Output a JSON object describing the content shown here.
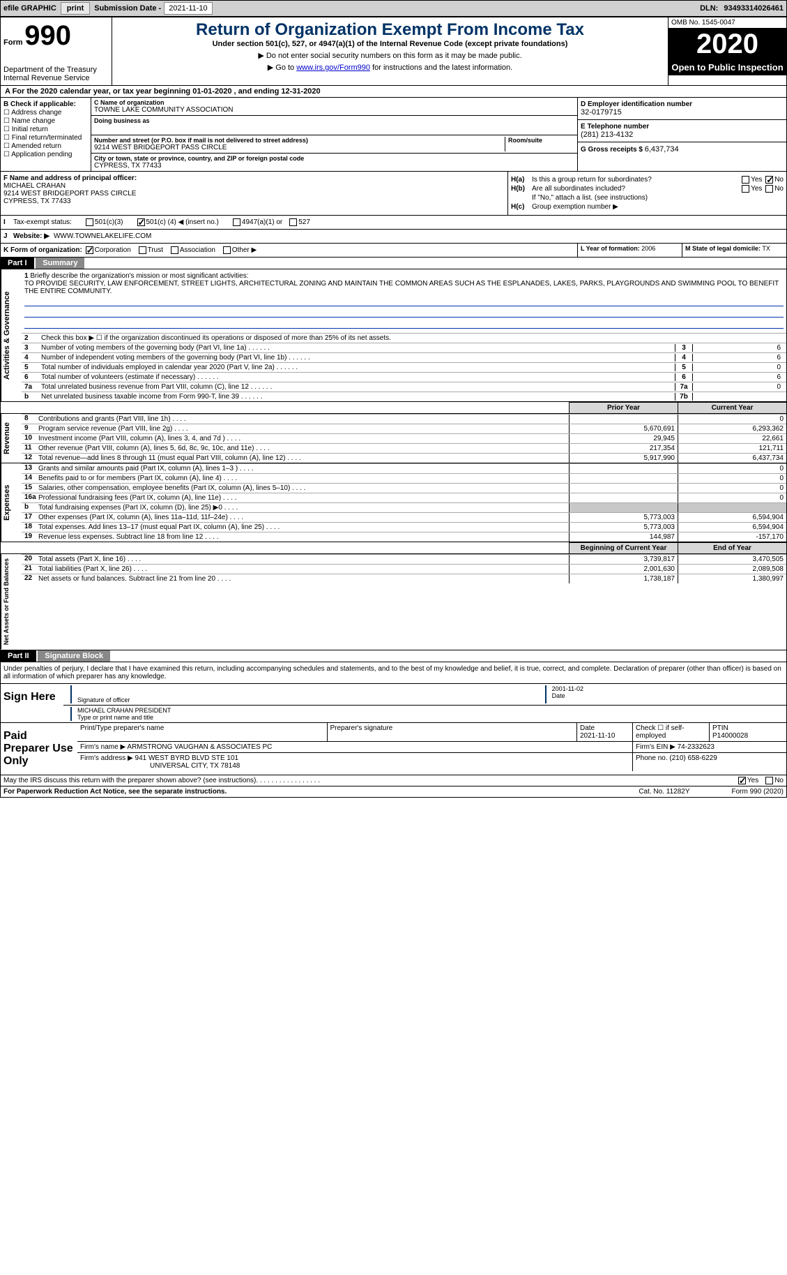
{
  "topbar": {
    "efile_label": "efile GRAPHIC",
    "print_btn": "print",
    "sub_date_label": "Submission Date -",
    "sub_date": "2021-11-10",
    "dln_label": "DLN:",
    "dln": "93493314026461"
  },
  "header": {
    "form_label": "Form",
    "form_num": "990",
    "dept": "Department of the Treasury\nInternal Revenue Service",
    "title": "Return of Organization Exempt From Income Tax",
    "subtitle": "Under section 501(c), 527, or 4947(a)(1) of the Internal Revenue Code (except private foundations)",
    "warn": "▶ Do not enter social security numbers on this form as it may be made public.",
    "goto_pre": "▶ Go to ",
    "goto_link": "www.irs.gov/Form990",
    "goto_post": " for instructions and the latest information.",
    "omb": "OMB No. 1545-0047",
    "year": "2020",
    "open": "Open to Public Inspection"
  },
  "period": {
    "prefix": "A For the 2020 calendar year, or tax year beginning ",
    "begin": "01-01-2020",
    "mid": " , and ending ",
    "end": "12-31-2020"
  },
  "boxB": {
    "title": "B Check if applicable:",
    "opts": [
      "Address change",
      "Name change",
      "Initial return",
      "Final return/terminated",
      "Amended return",
      "Application pending"
    ]
  },
  "boxC": {
    "name_label": "C Name of organization",
    "name": "TOWNE LAKE COMMUNITY ASSOCIATION",
    "dba_label": "Doing business as",
    "addr_label": "Number and street (or P.O. box if mail is not delivered to street address)",
    "room_label": "Room/suite",
    "addr": "9214 WEST BRIDGEPORT PASS CIRCLE",
    "city_label": "City or town, state or province, country, and ZIP or foreign postal code",
    "city": "CYPRESS, TX  77433"
  },
  "boxD": {
    "label": "D Employer identification number",
    "val": "32-0179715"
  },
  "boxE": {
    "label": "E Telephone number",
    "val": "(281) 213-4132"
  },
  "boxG": {
    "label": "G Gross receipts $",
    "val": "6,437,734"
  },
  "boxF": {
    "label": "F Name and address of principal officer:",
    "name": "MICHAEL CRAHAN",
    "addr1": "9214 WEST BRIDGEPORT PASS CIRCLE",
    "addr2": "CYPRESS, TX  77433"
  },
  "boxH": {
    "a_label": "H(a)",
    "a_text": "Is this a group return for subordinates?",
    "a_yes": "Yes",
    "a_no": "No",
    "b_label": "H(b)",
    "b_text": "Are all subordinates included?",
    "b_yes": "Yes",
    "b_no": "No",
    "b_note": "If \"No,\" attach a list. (see instructions)",
    "c_label": "H(c)",
    "c_text": "Group exemption number ▶"
  },
  "taxStatus": {
    "i_label": "I",
    "label": "Tax-exempt status:",
    "c3": "501(c)(3)",
    "c_pre": "501(c) (",
    "c_num": "4",
    "c_post": ") ◀ (insert no.)",
    "a1": "4947(a)(1) or",
    "s527": "527"
  },
  "website": {
    "j_label": "J",
    "label": "Website: ▶",
    "val": "WWW.TOWNELAKELIFE.COM"
  },
  "boxK": {
    "label": "K Form of organization:",
    "corp": "Corporation",
    "trust": "Trust",
    "assoc": "Association",
    "other": "Other ▶",
    "l_label": "L Year of formation:",
    "l_val": "2006",
    "m_label": "M State of legal domicile:",
    "m_val": "TX"
  },
  "part1": {
    "tag": "Part I",
    "title": "Summary",
    "q1_label": "1",
    "q1_text": "Briefly describe the organization's mission or most significant activities:",
    "mission": "TO PROVIDE SECURITY, LAW ENFORCEMENT, STREET LIGHTS, ARCHITECTURAL ZONING AND MAINTAIN THE COMMON AREAS SUCH AS THE ESPLANADES, LAKES, PARKS, PLAYGROUNDS AND SWIMMING POOL TO BENEFIT THE ENTIRE COMMUNITY.",
    "q2_label": "2",
    "q2_text": "Check this box ▶ ☐ if the organization discontinued its operations or disposed of more than 25% of its net assets.",
    "side1": "Activities & Governance",
    "lines_gov": [
      {
        "n": "3",
        "t": "Number of voting members of the governing body (Part VI, line 1a)",
        "box": "3",
        "v": "6"
      },
      {
        "n": "4",
        "t": "Number of independent voting members of the governing body (Part VI, line 1b)",
        "box": "4",
        "v": "6"
      },
      {
        "n": "5",
        "t": "Total number of individuals employed in calendar year 2020 (Part V, line 2a)",
        "box": "5",
        "v": "0"
      },
      {
        "n": "6",
        "t": "Total number of volunteers (estimate if necessary)",
        "box": "6",
        "v": "6"
      },
      {
        "n": "7a",
        "t": "Total unrelated business revenue from Part VIII, column (C), line 12",
        "box": "7a",
        "v": "0"
      },
      {
        "n": "b",
        "t": "Net unrelated business taxable income from Form 990-T, line 39",
        "box": "7b",
        "v": ""
      }
    ],
    "hdr_py": "Prior Year",
    "hdr_cy": "Current Year",
    "side2": "Revenue",
    "lines_rev": [
      {
        "n": "8",
        "t": "Contributions and grants (Part VIII, line 1h)",
        "py": "",
        "cy": "0"
      },
      {
        "n": "9",
        "t": "Program service revenue (Part VIII, line 2g)",
        "py": "5,670,691",
        "cy": "6,293,362"
      },
      {
        "n": "10",
        "t": "Investment income (Part VIII, column (A), lines 3, 4, and 7d )",
        "py": "29,945",
        "cy": "22,661"
      },
      {
        "n": "11",
        "t": "Other revenue (Part VIII, column (A), lines 5, 6d, 8c, 9c, 10c, and 11e)",
        "py": "217,354",
        "cy": "121,711"
      },
      {
        "n": "12",
        "t": "Total revenue—add lines 8 through 11 (must equal Part VIII, column (A), line 12)",
        "py": "5,917,990",
        "cy": "6,437,734"
      }
    ],
    "side3": "Expenses",
    "lines_exp": [
      {
        "n": "13",
        "t": "Grants and similar amounts paid (Part IX, column (A), lines 1–3 )",
        "py": "",
        "cy": "0"
      },
      {
        "n": "14",
        "t": "Benefits paid to or for members (Part IX, column (A), line 4)",
        "py": "",
        "cy": "0"
      },
      {
        "n": "15",
        "t": "Salaries, other compensation, employee benefits (Part IX, column (A), lines 5–10)",
        "py": "",
        "cy": "0"
      },
      {
        "n": "16a",
        "t": "Professional fundraising fees (Part IX, column (A), line 11e)",
        "py": "",
        "cy": "0"
      },
      {
        "n": "b",
        "t": "Total fundraising expenses (Part IX, column (D), line 25) ▶0",
        "py": "shaded",
        "cy": "shaded"
      },
      {
        "n": "17",
        "t": "Other expenses (Part IX, column (A), lines 11a–11d, 11f–24e)",
        "py": "5,773,003",
        "cy": "6,594,904"
      },
      {
        "n": "18",
        "t": "Total expenses. Add lines 13–17 (must equal Part IX, column (A), line 25)",
        "py": "5,773,003",
        "cy": "6,594,904"
      },
      {
        "n": "19",
        "t": "Revenue less expenses. Subtract line 18 from line 12",
        "py": "144,987",
        "cy": "-157,170"
      }
    ],
    "hdr_bcy": "Beginning of Current Year",
    "hdr_eoy": "End of Year",
    "side4": "Net Assets or Fund Balances",
    "lines_na": [
      {
        "n": "20",
        "t": "Total assets (Part X, line 16)",
        "py": "3,739,817",
        "cy": "3,470,505"
      },
      {
        "n": "21",
        "t": "Total liabilities (Part X, line 26)",
        "py": "2,001,630",
        "cy": "2,089,508"
      },
      {
        "n": "22",
        "t": "Net assets or fund balances. Subtract line 21 from line 20",
        "py": "1,738,187",
        "cy": "1,380,997"
      }
    ]
  },
  "part2": {
    "tag": "Part II",
    "title": "Signature Block",
    "intro": "Under penalties of perjury, I declare that I have examined this return, including accompanying schedules and statements, and to the best of my knowledge and belief, it is true, correct, and complete. Declaration of preparer (other than officer) is based on all information of which preparer has any knowledge.",
    "sign_here": "Sign Here",
    "sig_label": "Signature of officer",
    "date_label": "Date",
    "date_val": "2001-11-02",
    "name_val": "MICHAEL CRAHAN  PRESIDENT",
    "name_label": "Type or print name and title"
  },
  "preparer": {
    "title": "Paid Preparer Use Only",
    "pt_name_label": "Print/Type preparer's name",
    "pt_sig_label": "Preparer's signature",
    "pt_date_label": "Date",
    "pt_date": "2021-11-10",
    "pt_self_label": "Check ☐ if self-employed",
    "ptin_label": "PTIN",
    "ptin": "P14000028",
    "firm_name_label": "Firm's name ▶",
    "firm_name": "ARMSTRONG VAUGHAN & ASSOCIATES PC",
    "firm_ein_label": "Firm's EIN ▶",
    "firm_ein": "74-2332623",
    "firm_addr_label": "Firm's address ▶",
    "firm_addr1": "941 WEST BYRD BLVD STE 101",
    "firm_addr2": "UNIVERSAL CITY, TX  78148",
    "phone_label": "Phone no.",
    "phone": "(210) 658-6229"
  },
  "footer": {
    "discuss": "May the IRS discuss this return with the preparer shown above? (see instructions)",
    "yes": "Yes",
    "no": "No",
    "pra": "For Paperwork Reduction Act Notice, see the separate instructions.",
    "cat": "Cat. No. 11282Y",
    "form": "Form 990 (2020)"
  }
}
